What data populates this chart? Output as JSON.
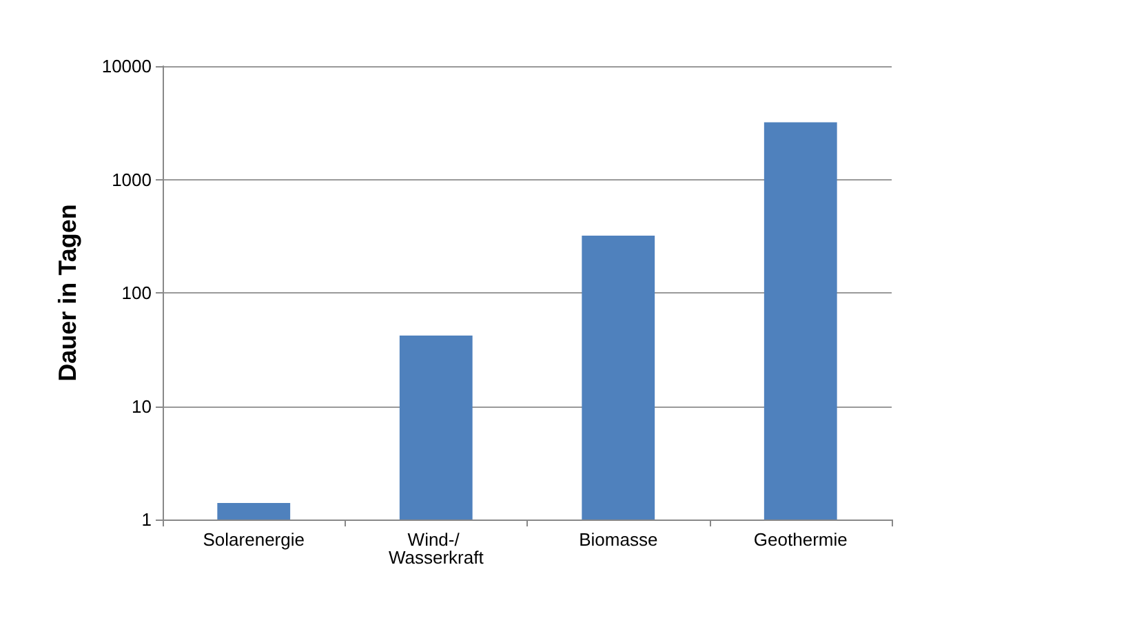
{
  "chart_data": {
    "type": "bar",
    "ylabel": "Dauer in Tagen",
    "categories": [
      "Solarenergie",
      "Wind-/ Wasserkraft",
      "Biomasse",
      "Geothermie"
    ],
    "values": [
      1.4,
      42,
      320,
      3200
    ],
    "color": "#4f81bd",
    "log": "y",
    "ylim": [
      1,
      10000
    ],
    "yticks": [
      1,
      10,
      100,
      1000,
      10000
    ],
    "grid": "y"
  }
}
